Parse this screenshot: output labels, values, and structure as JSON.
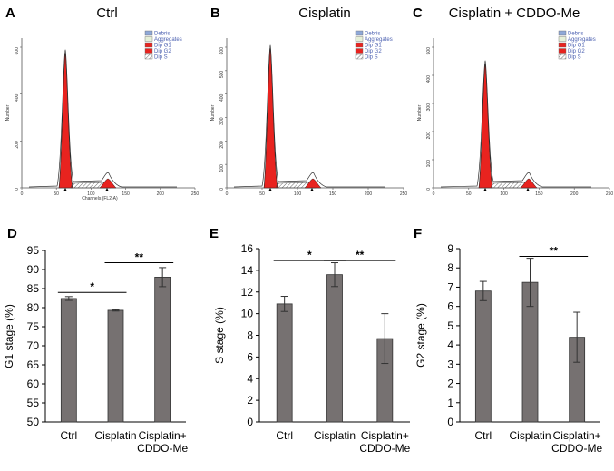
{
  "histograms": [
    {
      "letter": "A",
      "title": "Ctrl",
      "ylabel": "Number",
      "xlabel": "Channels (FL2-A)",
      "xticks": [
        "0",
        "50",
        "100",
        "150",
        "200",
        "250"
      ],
      "yticks": [
        "0",
        "200",
        "400",
        "600"
      ],
      "legend": [
        "Debris",
        "Aggregates",
        "Dip G1",
        "Dip G2",
        "Dip S"
      ]
    },
    {
      "letter": "B",
      "title": "Cisplatin",
      "ylabel": "Number",
      "xlabel": "",
      "xticks": [
        "0",
        "50",
        "100",
        "150",
        "200",
        "250"
      ],
      "yticks": [
        "0",
        "100",
        "200",
        "300",
        "400",
        "500",
        "600"
      ],
      "legend": [
        "Debris",
        "Aggregates",
        "Dip G1",
        "Dip G2",
        "Dip S"
      ]
    },
    {
      "letter": "C",
      "title": "Cisplatin + CDDO-Me",
      "ylabel": "Number",
      "xlabel": "",
      "xticks": [
        "0",
        "50",
        "100",
        "150",
        "200",
        "250"
      ],
      "yticks": [
        "0",
        "100",
        "200",
        "300",
        "400",
        "500"
      ],
      "legend": [
        "Debris",
        "Aggregates",
        "Dip G1",
        "Dip G2",
        "Dip S"
      ]
    }
  ],
  "chart_data": [
    {
      "panel": "D",
      "type": "bar",
      "categories": [
        "Ctrl",
        "Cisplatin",
        "Cisplatin+\nCDDO-Me"
      ],
      "values": [
        82.4,
        79.3,
        88.0
      ],
      "errors": [
        0.5,
        0.2,
        2.5
      ],
      "ylabel": "G1 stage (%)",
      "ylim": [
        50,
        95
      ],
      "yticks": [
        50,
        55,
        60,
        65,
        70,
        75,
        80,
        85,
        90,
        95
      ],
      "significance": [
        {
          "from": 0,
          "to": 1,
          "label": "*",
          "y": 84.0
        },
        {
          "from": 1,
          "to": 2,
          "label": "**",
          "y": 91.8
        }
      ],
      "bar_color": "#767171"
    },
    {
      "panel": "E",
      "type": "bar",
      "categories": [
        "Ctrl",
        "Cisplatin",
        "Cisplatin+\nCDDO-Me"
      ],
      "values": [
        10.9,
        13.6,
        7.7
      ],
      "errors": [
        0.7,
        1.1,
        2.3
      ],
      "ylabel": "S stage (%)",
      "ylim": [
        0,
        16
      ],
      "yticks": [
        0,
        2,
        4,
        6,
        8,
        10,
        12,
        14,
        16
      ],
      "significance": [
        {
          "from": 0,
          "to": 1,
          "label": "*",
          "y": 14.9
        },
        {
          "from": 1,
          "to": 2,
          "label": "**",
          "y": 14.9
        }
      ],
      "bar_color": "#767171"
    },
    {
      "panel": "F",
      "type": "bar",
      "categories": [
        "Ctrl",
        "Cisplatin",
        "Cisplatin+\nCDDO-Me"
      ],
      "values": [
        6.8,
        7.25,
        4.4
      ],
      "errors": [
        0.5,
        1.25,
        1.3
      ],
      "ylabel": "G2 stage (%)",
      "ylim": [
        0,
        9
      ],
      "yticks": [
        0,
        1,
        2,
        3,
        4,
        5,
        6,
        7,
        8,
        9
      ],
      "significance": [
        {
          "from": 1,
          "to": 2,
          "label": "**",
          "y": 8.6
        }
      ],
      "bar_color": "#767171"
    }
  ]
}
